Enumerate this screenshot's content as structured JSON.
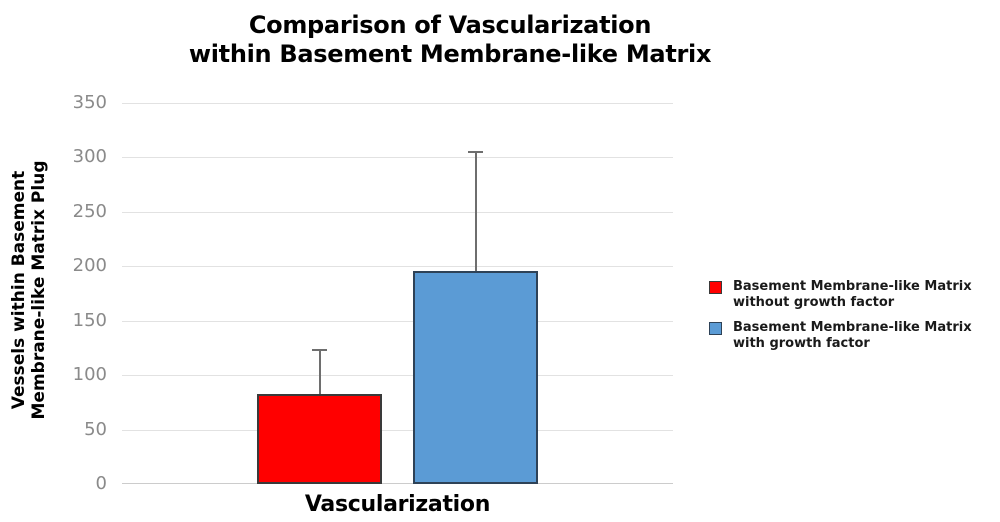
{
  "title": {
    "line1": "Comparison of Vascularization",
    "line2": "within Basement Membrane-like Matrix"
  },
  "y_axis_title": {
    "line1": "Vessels within Basement",
    "line2": "Membrane-like Matrix Plug"
  },
  "x_axis_title": "Vascularization",
  "legend": [
    {
      "line1": "Basement Membrane-like Matrix",
      "line2": "without growth factor",
      "color": "#FF0000",
      "border": "#3A3A3A"
    },
    {
      "line1": "Basement Membrane-like Matrix",
      "line2": "with growth factor",
      "color": "#5B9BD5",
      "border": "#2E4257"
    }
  ],
  "chart_data": {
    "type": "bar",
    "title": "Comparison of Vascularization within Basement Membrane-like Matrix",
    "categories": [
      "Vascularization"
    ],
    "series": [
      {
        "name": "Basement Membrane-like Matrix without growth factor",
        "values": [
          83
        ],
        "error_plus": [
          41
        ],
        "color": "#FF0000",
        "border": "#3A3A3A"
      },
      {
        "name": "Basement Membrane-like Matrix with growth factor",
        "values": [
          196
        ],
        "error_plus": [
          110
        ],
        "color": "#5B9BD5",
        "border": "#2E4257"
      }
    ],
    "xlabel": "Vascularization",
    "ylabel": "Vessels within Basement Membrane-like Matrix Plug",
    "ylim": [
      0,
      350
    ],
    "yticks": [
      0,
      50,
      100,
      150,
      200,
      250,
      300,
      350
    ],
    "grid": true,
    "legend_position": "right",
    "colors": {
      "gridline": "#E2E2E2",
      "axis_line": "#CCCCCC",
      "tick_label": "#8A8A8A",
      "error_bar": "#6E6E6E"
    }
  }
}
